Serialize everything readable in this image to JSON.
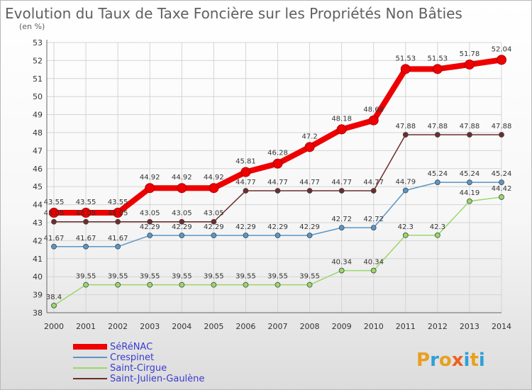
{
  "chart_data": {
    "type": "line",
    "title": "Evolution du Taux de Taxe Foncière sur les Propriétés Non Bâties",
    "subtitle": "(en %)",
    "x": [
      "2000",
      "2001",
      "2002",
      "2003",
      "2004",
      "2005",
      "2006",
      "2007",
      "2008",
      "2009",
      "2010",
      "2011",
      "2012",
      "2013",
      "2014"
    ],
    "ylim": [
      38,
      53
    ],
    "y_ticks": [
      "38",
      "39",
      "40",
      "41",
      "42",
      "43",
      "44",
      "45",
      "46",
      "47",
      "48",
      "49",
      "50",
      "51",
      "52",
      "53"
    ],
    "grid": true,
    "legend_position": "bottom-left",
    "series": [
      {
        "name": "SéRéNAC",
        "color": "#ee0000",
        "values": [
          43.55,
          43.55,
          43.55,
          44.92,
          44.92,
          44.92,
          45.81,
          46.28,
          47.2,
          48.18,
          48.68,
          51.53,
          51.53,
          51.78,
          52.04
        ],
        "labels": [
          "43.55",
          "43.55",
          "43.55",
          "44.92",
          "44.92",
          "44.92",
          "45.81",
          "46.28",
          "47.2",
          "48.18",
          "48.68",
          "51.53",
          "51.53",
          "51.78",
          "52.04"
        ]
      },
      {
        "name": "Crespinet",
        "color": "#5a96c8",
        "values": [
          41.67,
          41.67,
          41.67,
          42.29,
          42.29,
          42.29,
          42.29,
          42.29,
          42.29,
          42.72,
          42.72,
          44.79,
          45.24,
          45.24,
          45.24
        ],
        "labels": [
          "41.67",
          "41.67",
          "41.67",
          "42.29",
          "42.29",
          "42.29",
          "42.29",
          "42.29",
          "42.29",
          "42.72",
          "42.72",
          "44.79",
          "45.24",
          "45.24",
          "45.24"
        ]
      },
      {
        "name": "Saint-Cirgue",
        "color": "#99d868",
        "values": [
          38.4,
          39.55,
          39.55,
          39.55,
          39.55,
          39.55,
          39.55,
          39.55,
          39.55,
          40.34,
          40.34,
          42.3,
          42.3,
          44.19,
          44.42
        ],
        "labels": [
          "38.4",
          "39.55",
          "39.55",
          "39.55",
          "39.55",
          "39.55",
          "39.55",
          "39.55",
          "39.55",
          "40.34",
          "40.34",
          "42.3",
          "42.3",
          "44.19",
          "44.42"
        ]
      },
      {
        "name": "Saint-Julien-Gaulène",
        "color": "#6e2c2c",
        "values": [
          43.05,
          43.05,
          43.05,
          43.05,
          43.05,
          43.05,
          44.77,
          44.77,
          44.77,
          44.77,
          44.77,
          47.88,
          47.88,
          47.88,
          47.88
        ],
        "labels": [
          "43.05",
          "43.05",
          "43.05",
          "43.05",
          "43.05",
          "43.05",
          "44.77",
          "44.77",
          "44.77",
          "44.77",
          "44.77",
          "47.88",
          "47.88",
          "47.88",
          "47.88"
        ]
      }
    ]
  },
  "logo": {
    "text": "Proxiti",
    "colors": [
      "#e8a020",
      "#2fa0d8",
      "#e8a020",
      "#f06020",
      "#2fa0d8",
      "#e8a020",
      "#2fa0d8"
    ]
  }
}
